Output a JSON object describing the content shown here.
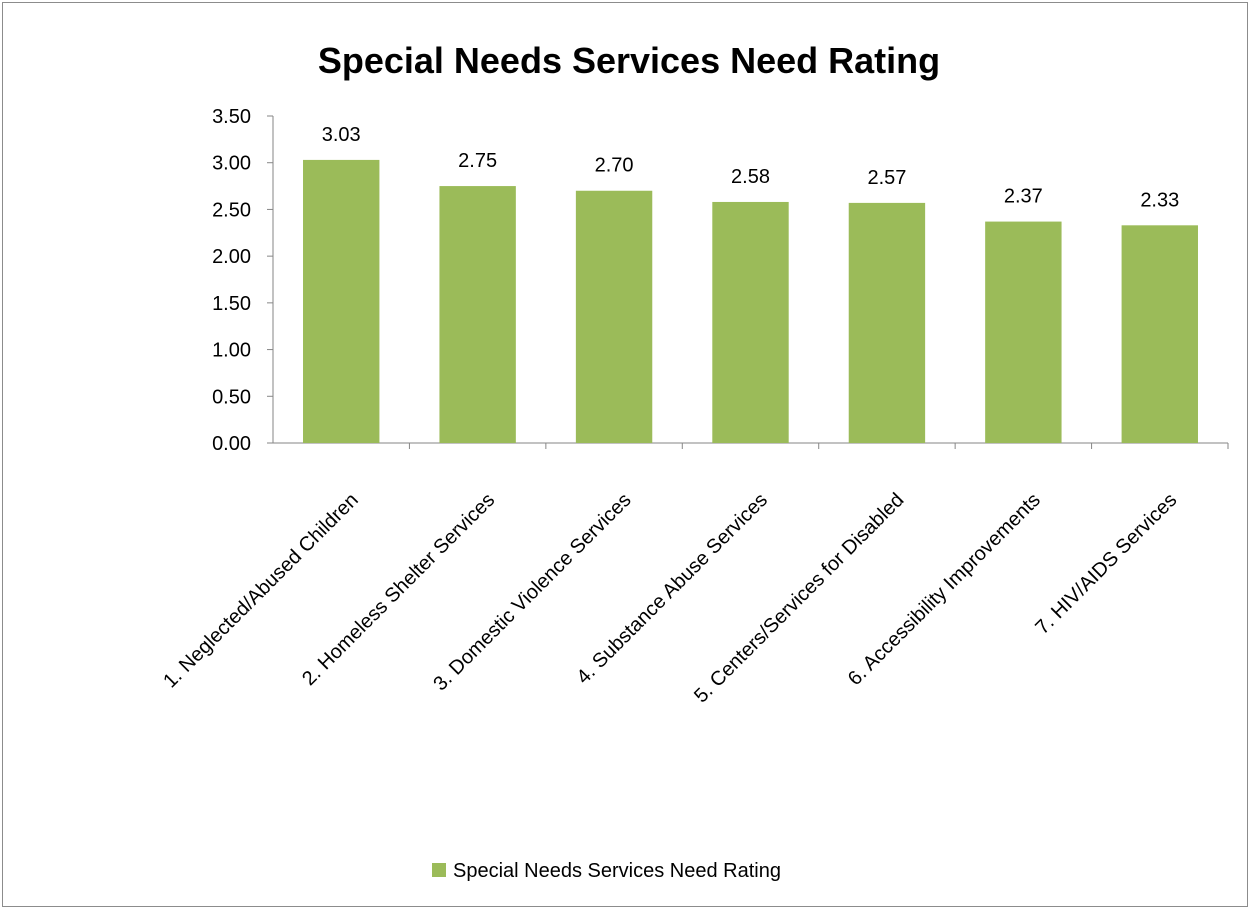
{
  "chart_data": {
    "type": "bar",
    "title": "Special Needs Services Need Rating",
    "xlabel": "",
    "ylabel": "",
    "categories": [
      "1. Neglected/Abused Children",
      "2. Homeless Shelter Services",
      "3. Domestic Violence Services",
      "4. Substance Abuse Services",
      "5. Centers/Services for Disabled",
      "6. Accessibility Improvements",
      "7. HIV/AIDS Services"
    ],
    "series": [
      {
        "name": "Special Needs Services Need Rating",
        "values": [
          3.03,
          2.75,
          2.7,
          2.58,
          2.57,
          2.37,
          2.33
        ],
        "data_labels": [
          "3.03",
          "2.75",
          "2.70",
          "2.58",
          "2.57",
          "2.37",
          "2.33"
        ],
        "color": "#9bbb59"
      }
    ],
    "ylim": [
      0,
      3.5
    ],
    "yticks": [
      0,
      0.5,
      1,
      1.5,
      2,
      2.5,
      3,
      3.5
    ],
    "ytick_labels": [
      "0.00",
      "0.50",
      "1.00",
      "1.50",
      "2.00",
      "2.50",
      "3.00",
      "3.50"
    ],
    "grid": false,
    "legend_position": "bottom",
    "legend_entries": [
      "Special Needs Services Need Rating"
    ]
  }
}
